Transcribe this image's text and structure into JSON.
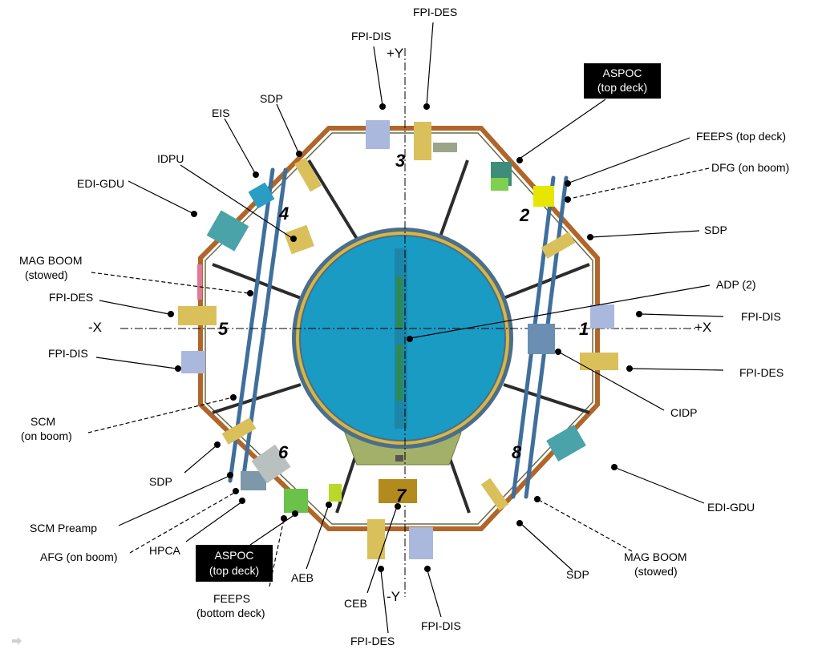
{
  "axes": {
    "plus_y": "+Y",
    "minus_y": "-Y",
    "plus_x": "+X",
    "minus_x": "-X"
  },
  "panels": [
    "1",
    "2",
    "3",
    "4",
    "5",
    "6",
    "7",
    "8"
  ],
  "labels": {
    "fpi_des_top": "FPI-DES",
    "fpi_dis_top": "FPI-DIS",
    "aspoc_top_1": "ASPOC",
    "aspoc_top_2": "(top deck)",
    "feeps_top": "FEEPS (top deck)",
    "dfg": "DFG (on boom)",
    "sdp_right": "SDP",
    "adp": "ADP (2)",
    "fpi_dis_right": "FPI-DIS",
    "fpi_des_right": "FPI-DES",
    "cidp": "CIDP",
    "edi_gdu_right": "EDI-GDU",
    "mag_boom_right_1": "MAG BOOM",
    "mag_boom_right_2": "(stowed)",
    "sdp_bottom_right": "SDP",
    "fpi_dis_bottom": "FPI-DIS",
    "fpi_des_bottom": "FPI-DES",
    "ceb": "CEB",
    "aeb": "AEB",
    "feeps_bottom_1": "FEEPS",
    "feeps_bottom_2": "(bottom deck)",
    "aspoc_bottom_1": "ASPOC",
    "aspoc_bottom_2": "(top deck)",
    "hpca": "HPCA",
    "afg": "AFG (on boom)",
    "scm_preamp": "SCM Preamp",
    "sdp_bottom_left": "SDP",
    "scm_1": "SCM",
    "scm_2": "(on boom)",
    "fpi_dis_left": "FPI-DIS",
    "fpi_des_left": "FPI-DES",
    "mag_boom_left_1": "MAG BOOM",
    "mag_boom_left_2": "(stowed)",
    "edi_gdu_left": "EDI-GDU",
    "idpu": "IDPU",
    "eis": "EIS",
    "sdp_top_left": "SDP"
  },
  "colors": {
    "deck_cyan": "#1a9bc3",
    "deck_ring": "#4a6e8c",
    "gold_ring": "#d9b640",
    "hull_brown": "#b0662a",
    "boom_blue": "#3f6f9c",
    "instrument_yellow": "#d9c05a",
    "instrument_teal": "#4aa3a8",
    "fpi_lavender": "#a9b8dc",
    "black_box": "#000000"
  },
  "icons": {
    "corner_arrow": "arrow-icon"
  }
}
